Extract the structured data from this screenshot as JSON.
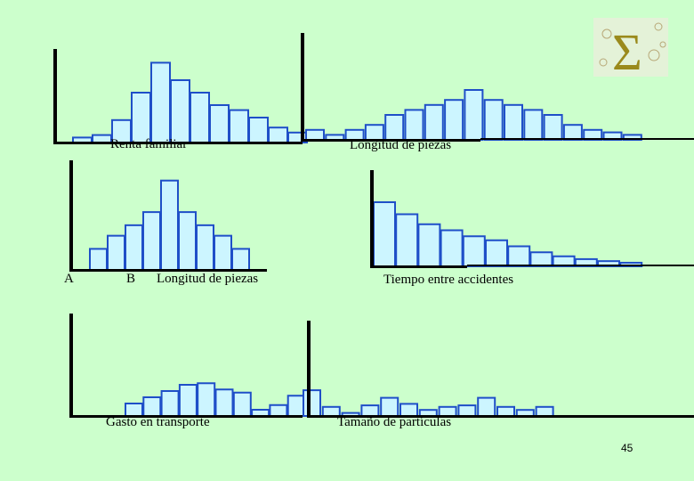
{
  "logo": {
    "symbol": "Σ",
    "name": "sigma-logo"
  },
  "colors": {
    "bar_fill": "#ccf5ff",
    "bar_stroke": "#1f4fc8",
    "axis": "#000000",
    "background": "#ccffcc"
  },
  "page_number": "45",
  "chart_data": [
    {
      "id": "renta-familiar",
      "type": "bar",
      "xlabel": "Renta familiar",
      "values": [
        1,
        1.5,
        4.5,
        10,
        16,
        12.5,
        10,
        7.5,
        6.5,
        5,
        3,
        2
      ]
    },
    {
      "id": "longitud-piezas-top",
      "type": "bar",
      "xlabel": "Longitud de piezas",
      "values": [
        2,
        1,
        2,
        3,
        5,
        6,
        7,
        8,
        10,
        8,
        7,
        6,
        5,
        3,
        2,
        1.5,
        1
      ]
    },
    {
      "id": "longitud-piezas-mid",
      "type": "bar",
      "xlabel": "Longitud de piezas",
      "extra_labels": [
        "A",
        "B"
      ],
      "values": [
        4,
        6.5,
        8.5,
        11,
        17,
        11,
        8.5,
        6.5,
        4
      ]
    },
    {
      "id": "tiempo-entre-accidentes",
      "type": "bar",
      "xlabel": "Tiempo entre accidentes",
      "values": [
        16,
        13,
        10.5,
        9,
        7.5,
        6.5,
        5,
        3.5,
        2.5,
        1.8,
        1.3,
        0.9
      ]
    },
    {
      "id": "gasto-en-transporte",
      "type": "bar",
      "xlabel": "Gasto en transporte",
      "values": [
        4,
        6,
        8,
        10,
        10.5,
        8.5,
        7.5,
        2,
        3.5,
        6.5
      ]
    },
    {
      "id": "tamano-de-particulas",
      "type": "bar",
      "xlabel": "Tamaño de partículas",
      "values": [
        8.5,
        3,
        1,
        3.5,
        6,
        4,
        2,
        3,
        3.5,
        6,
        3,
        2,
        3
      ]
    }
  ]
}
